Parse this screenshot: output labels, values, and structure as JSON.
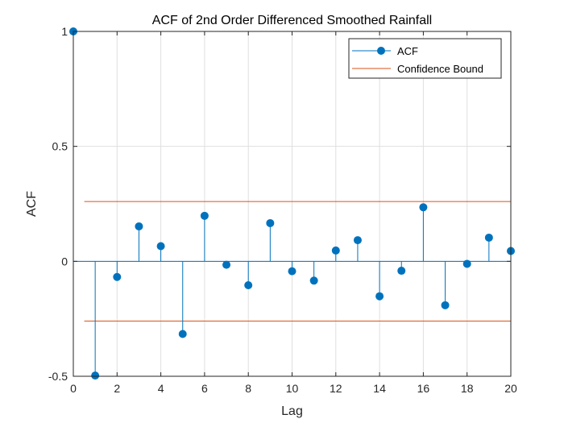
{
  "chart_data": {
    "type": "stem",
    "title": "ACF of 2nd Order Differenced Smoothed Rainfall",
    "xlabel": "Lag",
    "ylabel": "ACF",
    "xlim": [
      0,
      20
    ],
    "ylim": [
      -0.5,
      1
    ],
    "xticks": [
      "0",
      "2",
      "4",
      "6",
      "8",
      "10",
      "12",
      "14",
      "16",
      "18",
      "20"
    ],
    "yticks": [
      "-0.5",
      "0",
      "0.5",
      "1"
    ],
    "grid": true,
    "legend_position": "top-right",
    "series": [
      {
        "name": "ACF",
        "color": "#0072BD",
        "x": [
          0,
          1,
          2,
          3,
          4,
          5,
          6,
          7,
          8,
          9,
          10,
          11,
          12,
          13,
          14,
          15,
          16,
          17,
          18,
          19,
          20
        ],
        "values": [
          1.0,
          -0.497,
          -0.068,
          0.152,
          0.066,
          -0.316,
          0.198,
          -0.015,
          -0.104,
          0.166,
          -0.043,
          -0.084,
          0.047,
          0.092,
          -0.152,
          -0.041,
          0.235,
          -0.191,
          -0.011,
          0.103,
          0.045
        ]
      },
      {
        "name": "Confidence Bound",
        "color": "#D95319",
        "x": [
          0.5,
          20
        ],
        "upper": 0.26,
        "lower": -0.26
      }
    ]
  }
}
